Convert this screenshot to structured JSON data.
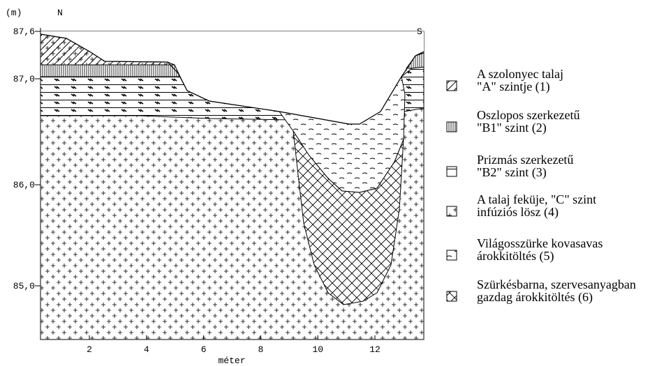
{
  "axes": {
    "y_unit": "(m)",
    "x_label": "méter",
    "yticks": [
      "87,6",
      "87,0",
      "86,0",
      "85,0"
    ],
    "xticks": [
      "2",
      "4",
      "6",
      "8",
      "10",
      "12"
    ]
  },
  "directions": {
    "left": "N",
    "right": "S"
  },
  "legend": [
    {
      "lines": [
        "A szolonyec talaj",
        "\"A\" szintje (1)"
      ]
    },
    {
      "lines": [
        "Oszlopos szerkezetű",
        "\"B1\" szint (2)"
      ]
    },
    {
      "lines": [
        "Prizmás szerkezetű",
        "\"B2\" szint (3)"
      ]
    },
    {
      "lines": [
        "A talaj feküje, \"C\" szint",
        "infúziós lösz (4)"
      ]
    },
    {
      "lines": [
        "Világosszürke kovasavas",
        "árokkitöltés (5)"
      ]
    },
    {
      "lines": [
        "Szürkésbarna, szervesanyagban",
        "gazdag árokkitöltés (6)"
      ]
    }
  ]
}
